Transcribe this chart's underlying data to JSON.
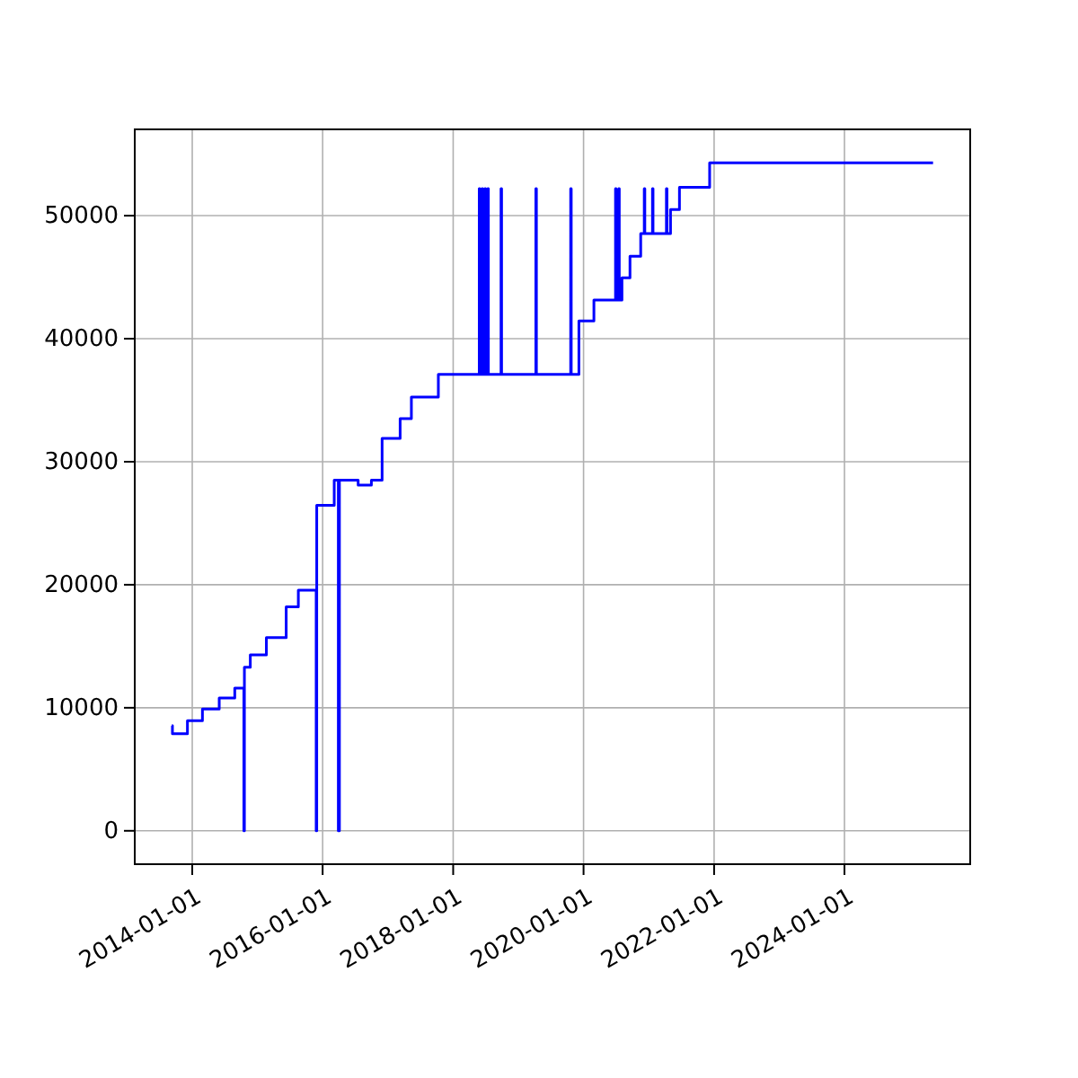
{
  "chart_data": {
    "type": "step",
    "x": [
      "2013-09-09",
      "2013-09-12",
      "2013-12-05",
      "2014-02-27",
      "2014-06-01",
      "2014-08-27",
      "2014-10-17",
      "2014-10-20",
      "2014-11-22",
      "2015-02-20",
      "2015-06-11",
      "2015-08-18",
      "2015-11-26",
      "2015-11-29",
      "2016-03-06",
      "2016-03-29",
      "2016-03-31",
      "2016-04-02",
      "2016-04-04",
      "2016-07-18",
      "2016-09-30",
      "2016-11-29",
      "2017-03-10",
      "2017-05-12",
      "2017-10-10",
      "2018-05-27",
      "2018-05-30",
      "2018-06-12",
      "2018-06-15",
      "2018-06-28",
      "2018-07-01",
      "2018-07-14",
      "2018-07-17",
      "2018-09-26",
      "2018-09-29",
      "2019-04-09",
      "2019-04-12",
      "2019-10-21",
      "2019-10-24",
      "2019-12-06",
      "2020-02-28",
      "2020-06-28",
      "2020-07-01",
      "2020-07-16",
      "2020-07-19",
      "2020-08-03",
      "2020-09-17",
      "2020-11-16",
      "2020-12-06",
      "2020-12-09",
      "2021-01-21",
      "2021-01-24",
      "2021-04-09",
      "2021-04-12",
      "2021-05-02",
      "2021-06-21",
      "2021-12-07",
      "2025-05-11"
    ],
    "series": [
      {
        "color": "#0000ff",
        "values": [
          8550,
          7900,
          8950,
          9900,
          10800,
          11600,
          0,
          13300,
          14300,
          15700,
          18200,
          19550,
          0,
          26450,
          28500,
          0,
          28500,
          0,
          28500,
          28100,
          28500,
          31900,
          33500,
          35250,
          37100,
          52200,
          37100,
          52200,
          37100,
          52200,
          37100,
          52200,
          37100,
          52200,
          37100,
          52200,
          37100,
          52200,
          37100,
          41450,
          43150,
          52200,
          43150,
          52200,
          43150,
          44950,
          46700,
          48550,
          52200,
          48550,
          52200,
          48550,
          52200,
          48550,
          50500,
          52300,
          54300,
          54300
        ]
      }
    ],
    "xlim": [
      "2013-02-13",
      "2025-12-05"
    ],
    "xticks": [
      "2014-01-01",
      "2016-01-01",
      "2018-01-01",
      "2020-01-01",
      "2022-01-01",
      "2024-01-01"
    ],
    "ylim": [
      -2715,
      57015
    ],
    "yticks": [
      0,
      10000,
      20000,
      30000,
      40000,
      50000
    ],
    "grid": true
  }
}
